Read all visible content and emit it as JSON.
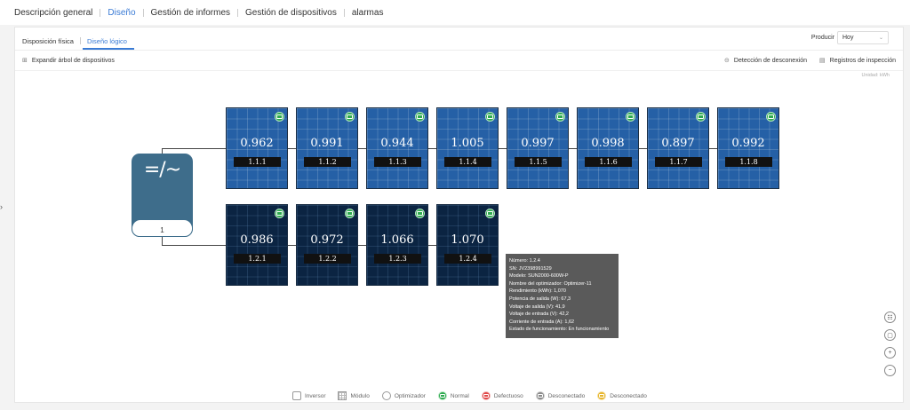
{
  "nav": {
    "tabs": [
      {
        "label": "Descripción general",
        "active": false
      },
      {
        "label": "Diseño",
        "active": true
      },
      {
        "label": "Gestión de informes",
        "active": false
      },
      {
        "label": "Gestión de dispositivos",
        "active": false
      },
      {
        "label": "alarmas",
        "active": false
      }
    ]
  },
  "subtabs": [
    {
      "label": "Disposición física",
      "active": false
    },
    {
      "label": "Diseño lógico",
      "active": true
    }
  ],
  "produce": {
    "label": "Producir",
    "value": "Hoy"
  },
  "toolbar": {
    "expand": "Expandir árbol de dispositivos",
    "disconnect_detection": "Detección de desconexión",
    "inspection_logs": "Registros de inspección"
  },
  "unit_label": "Unidad:  kWh",
  "inverter": {
    "number": "1",
    "symbol": "=/~"
  },
  "strings": [
    {
      "modules": [
        {
          "value": "0.962",
          "id": "1.1.1"
        },
        {
          "value": "0.991",
          "id": "1.1.2"
        },
        {
          "value": "0.944",
          "id": "1.1.3"
        },
        {
          "value": "1.005",
          "id": "1.1.4"
        },
        {
          "value": "0.997",
          "id": "1.1.5"
        },
        {
          "value": "0.998",
          "id": "1.1.6"
        },
        {
          "value": "0.897",
          "id": "1.1.7"
        },
        {
          "value": "0.992",
          "id": "1.1.8"
        }
      ]
    },
    {
      "modules": [
        {
          "value": "0.986",
          "id": "1.2.1"
        },
        {
          "value": "0.972",
          "id": "1.2.2"
        },
        {
          "value": "1.066",
          "id": "1.2.3"
        },
        {
          "value": "1.070",
          "id": "1.2.4"
        }
      ]
    }
  ],
  "tooltip": {
    "lines": [
      "Número: 1.2.4",
      "SN: JV2398991529",
      "Modelo: SUN2000-600W-P",
      "Nombre del optimizador: Optimizer-11",
      "Rendimiento (kWh): 1,070",
      "Potencia de salida (W): 67,3",
      "Voltaje de salida (V): 41,9",
      "Voltaje de entrada (V): 42,2",
      "Corriente de entrada (A): 1,62",
      "Estado de funcionamiento: En funcionamiento"
    ]
  },
  "legend": [
    {
      "label": "Inversor",
      "kind": "inverter"
    },
    {
      "label": "Módulo",
      "kind": "module"
    },
    {
      "label": "Optimizador",
      "kind": "optimizer"
    },
    {
      "label": "Normal",
      "kind": "dot",
      "color": "#2da94f",
      "ring": "#b7e6c2"
    },
    {
      "label": "Defectuoso",
      "kind": "dot",
      "color": "#e04848",
      "ring": "#f3b9b9"
    },
    {
      "label": "Desconectado",
      "kind": "dot",
      "color": "#8a8a8a",
      "ring": "#cfcfcf"
    },
    {
      "label": "Desconectado",
      "kind": "dot",
      "color": "#e7b52a",
      "ring": "#f5dfa0"
    }
  ],
  "colors": {
    "accent": "#3a7bd5",
    "normal": "#2da94f",
    "module": "#2560a6",
    "module_optimizer": "#0b2442",
    "inverter": "#3e6d8b"
  }
}
